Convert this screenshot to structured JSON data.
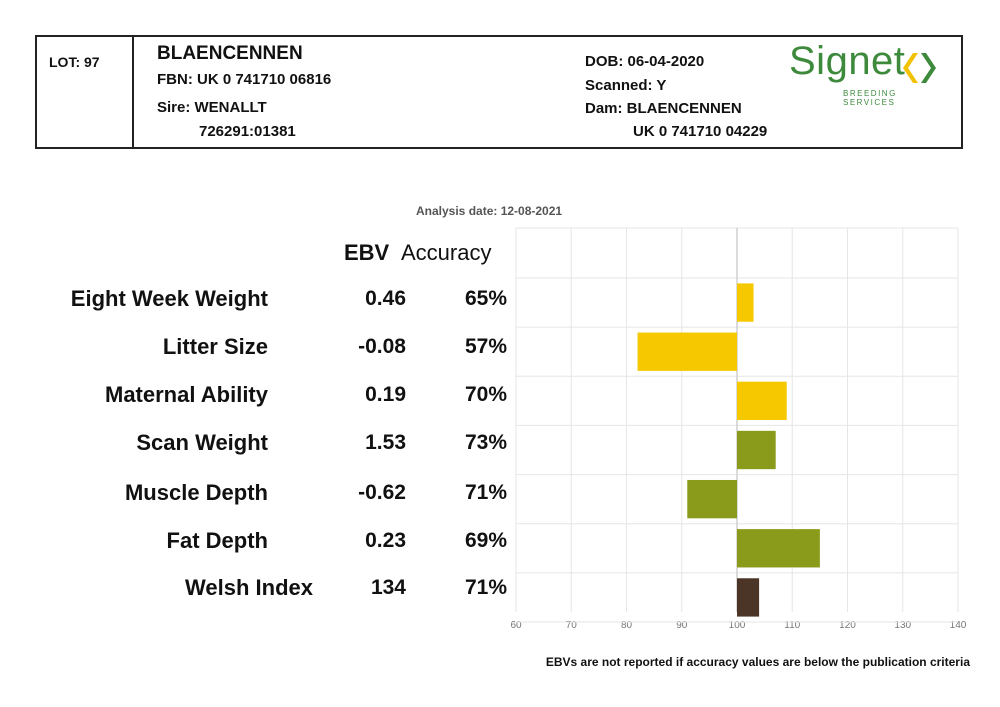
{
  "header": {
    "lot": "LOT: 97",
    "animal_name": "BLAENCENNEN",
    "fbn": "FBN: UK 0 741710 06816",
    "sire": "Sire: WENALLT",
    "sire_id": "726291:01381",
    "dob": "DOB: 06-04-2020",
    "scanned": "Scanned: Y",
    "dam": "Dam: BLAENCENNEN",
    "dam_id": "UK 0 741710 04229",
    "logo_word": "Signet",
    "logo_sub": "BREEDING SERVICES"
  },
  "analysis_date": "Analysis date: 12-08-2021",
  "columns": {
    "ebv": "EBV",
    "accuracy": "Accuracy"
  },
  "rows": [
    {
      "label": "Eight Week Weight",
      "ebv": "0.46",
      "accuracy": "65%"
    },
    {
      "label": "Litter Size",
      "ebv": "-0.08",
      "accuracy": "57%"
    },
    {
      "label": "Maternal Ability",
      "ebv": "0.19",
      "accuracy": "70%"
    },
    {
      "label": "Scan Weight",
      "ebv": "1.53",
      "accuracy": "73%"
    },
    {
      "label": "Muscle Depth",
      "ebv": "-0.62",
      "accuracy": "71%"
    },
    {
      "label": "Fat Depth",
      "ebv": "0.23",
      "accuracy": "69%"
    },
    {
      "label": "Welsh Index",
      "ebv": "134",
      "accuracy": "71%"
    }
  ],
  "footnote": "EBVs are not reported if accuracy values are below the publication criteria",
  "colors": {
    "yellow": "#f5c800",
    "green": "#8a9a1a",
    "brown": "#4a3526",
    "logo_green": "#3d8a3c",
    "logo_yellow": "#f2c200",
    "grid": "#e6e6e6"
  },
  "chart_data": {
    "type": "bar",
    "orientation": "horizontal",
    "baseline": 100,
    "xlim": [
      60,
      140
    ],
    "xticks": [
      60,
      70,
      80,
      90,
      100,
      110,
      120,
      130,
      140
    ],
    "grid": true,
    "categories": [
      "Eight Week Weight",
      "Litter Size",
      "Maternal Ability",
      "Scan Weight",
      "Muscle Depth",
      "Fat Depth",
      "Welsh Index"
    ],
    "values": [
      103,
      82,
      109,
      107,
      91,
      115,
      104
    ],
    "bar_colors": [
      "yellow",
      "yellow",
      "yellow",
      "green",
      "green",
      "green",
      "brown"
    ]
  }
}
